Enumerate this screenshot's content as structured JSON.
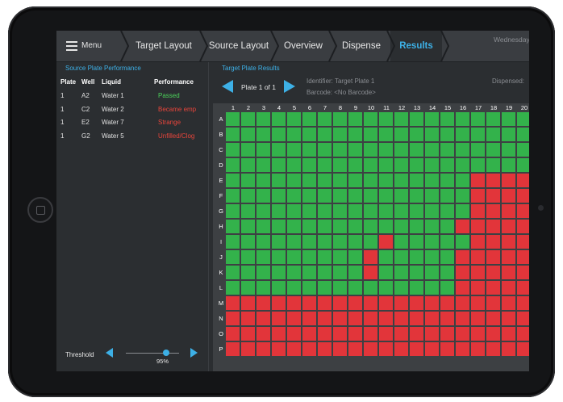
{
  "nav": {
    "menu_label": "Menu",
    "steps": [
      {
        "label": "Target Layout",
        "active": false
      },
      {
        "label": "Source Layout",
        "active": false
      },
      {
        "label": "Overview",
        "active": false
      },
      {
        "label": "Dispense",
        "active": false
      },
      {
        "label": "Results",
        "active": true
      }
    ],
    "date_text": "Wednesday"
  },
  "source_panel": {
    "title": "Source Plate Performance",
    "columns": [
      "Plate",
      "Well",
      "Liquid",
      "Performance"
    ],
    "rows": [
      {
        "plate": "1",
        "well": "A2",
        "liquid": "Water 1",
        "performance": "Passed",
        "status": "ok"
      },
      {
        "plate": "1",
        "well": "C2",
        "liquid": "Water 2",
        "performance": "Became emp",
        "status": "bad"
      },
      {
        "plate": "1",
        "well": "E2",
        "liquid": "Water 7",
        "performance": "Strange",
        "status": "bad"
      },
      {
        "plate": "1",
        "well": "G2",
        "liquid": "Water 5",
        "performance": "Unfilled/Clog",
        "status": "bad"
      }
    ],
    "threshold_label": "Threshold",
    "threshold_value": "95%",
    "threshold_fraction": 0.95
  },
  "target_panel": {
    "title": "Target Plate Results",
    "pager_label": "Plate 1 of 1",
    "identifier": "Identifier: Target Plate 1",
    "barcode": "Barcode: <No Barcode>",
    "dispensed": "Dispensed:",
    "column_labels": [
      "1",
      "2",
      "3",
      "4",
      "5",
      "6",
      "7",
      "8",
      "9",
      "10",
      "11",
      "12",
      "13",
      "14",
      "15",
      "16",
      "17",
      "18",
      "19",
      "20"
    ],
    "row_labels": [
      "A",
      "B",
      "C",
      "D",
      "E",
      "F",
      "G",
      "H",
      "I",
      "J",
      "K",
      "L",
      "M",
      "N",
      "O",
      "P"
    ],
    "wells": [
      "GGGGGGGGGGGGGGGGGGGG",
      "GGGGGGGGGGGGGGGGGGGG",
      "GGGGGGGGGGGGGGGGGGGG",
      "GGGGGGGGGGGGGGGGGGGG",
      "GGGGGGGGGGGGGGGGRRRR",
      "GGGGGGGGGGGGGGGGRRRR",
      "GGGGGGGGGGGGGGGGRRRR",
      "GGGGGGGGGGGGGGGRRRRR",
      "GGGGGGGGGGRGGGGGRRRR",
      "GGGGGGGGGRGGGGGRRRRR",
      "GGGGGGGGGRGGGGGRRRRR",
      "GGGGGGGGGGGGGGGRRRRR",
      "RRRRRRRRRRRRRRRRRRRR",
      "RRRRRRRRRRRRRRRRRRRR",
      "RRRRRRRRRRRRRRRRRRRR",
      "RRRRRRRRRRRRRRRRRRRR"
    ]
  },
  "colors": {
    "accent": "#3db0e6",
    "pass": "#33b24b",
    "fail": "#e2353a",
    "background": "#2b2e31"
  }
}
